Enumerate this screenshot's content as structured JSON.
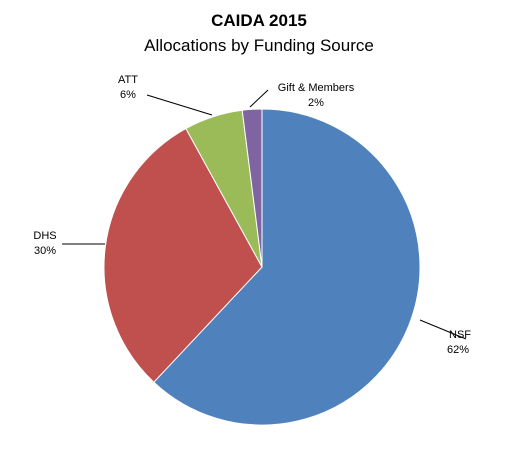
{
  "chart_data": {
    "type": "pie",
    "title": "CAIDA 2015",
    "subtitle": "Allocations by Funding Source",
    "legend": "none",
    "slices": [
      {
        "name": "NSF",
        "value": 62,
        "percent_label": "62%",
        "color": "#4f81bd"
      },
      {
        "name": "DHS",
        "value": 30,
        "percent_label": "30%",
        "color": "#c0504d"
      },
      {
        "name": "ATT",
        "value": 6,
        "percent_label": "6%",
        "color": "#9bbb59"
      },
      {
        "name": "Gift & Members",
        "value": 2,
        "percent_label": "2%",
        "color": "#8064a2"
      }
    ]
  }
}
